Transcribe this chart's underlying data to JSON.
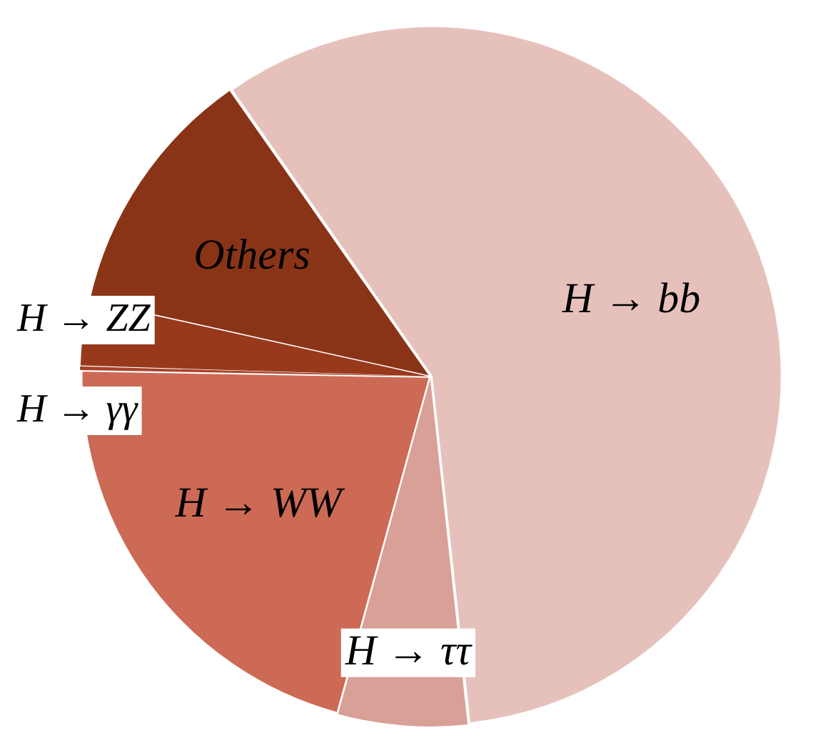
{
  "chart_data": {
    "type": "pie",
    "categories": [
      "H → bb",
      "H → ττ",
      "H → WW",
      "H → γγ",
      "H → ZZ",
      "Others"
    ],
    "values": [
      58,
      6,
      21,
      0.2,
      3,
      11.8
    ],
    "colors": [
      "#e6c1bb",
      "#d9a097",
      "#cc6a55",
      "#a8432a",
      "#98391c",
      "#8a3417"
    ],
    "legend": false
  }
}
